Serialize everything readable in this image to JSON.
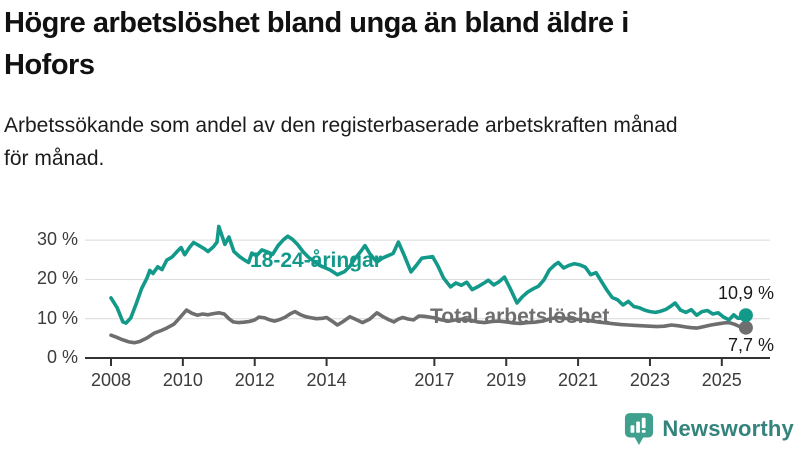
{
  "chart_data": {
    "type": "line",
    "title": "Högre arbetslöshet bland unga än bland äldre i Hofors",
    "subtitle": "Arbetssökande som andel av den registerbaserade arbetskraften månad för månad.",
    "xlabel": "",
    "ylabel": "",
    "xlim": [
      2008,
      2025.9
    ],
    "ylim": [
      0,
      34
    ],
    "grid": true,
    "legend_position": "inline-labels",
    "x_ticks": [
      2008,
      2010,
      2012,
      2014,
      2017,
      2019,
      2021,
      2023,
      2025
    ],
    "y_ticks": [
      {
        "value": 0,
        "label": "0 %"
      },
      {
        "value": 10,
        "label": "10 %"
      },
      {
        "value": 20,
        "label": "20 %"
      },
      {
        "value": 30,
        "label": "30 %"
      }
    ],
    "series": [
      {
        "name": "18-24-åringar",
        "color": "#13998a",
        "end_label": "10,9 %",
        "end_value": 10.9,
        "points": [
          [
            2008.0,
            15.3
          ],
          [
            2008.17,
            12.8
          ],
          [
            2008.33,
            9.2
          ],
          [
            2008.42,
            8.9
          ],
          [
            2008.55,
            10.2
          ],
          [
            2008.7,
            13.8
          ],
          [
            2008.85,
            17.6
          ],
          [
            2009.0,
            20.3
          ],
          [
            2009.08,
            22.3
          ],
          [
            2009.17,
            21.5
          ],
          [
            2009.3,
            23.2
          ],
          [
            2009.42,
            22.5
          ],
          [
            2009.55,
            24.9
          ],
          [
            2009.7,
            25.7
          ],
          [
            2009.85,
            27.2
          ],
          [
            2009.95,
            28.1
          ],
          [
            2010.05,
            26.3
          ],
          [
            2010.2,
            28.3
          ],
          [
            2010.3,
            29.4
          ],
          [
            2010.45,
            28.6
          ],
          [
            2010.6,
            27.8
          ],
          [
            2010.7,
            27.1
          ],
          [
            2010.85,
            28.3
          ],
          [
            2010.95,
            29.5
          ],
          [
            2011.0,
            33.5
          ],
          [
            2011.1,
            30.8
          ],
          [
            2011.17,
            28.9
          ],
          [
            2011.28,
            30.8
          ],
          [
            2011.42,
            27.1
          ],
          [
            2011.58,
            25.8
          ],
          [
            2011.72,
            24.9
          ],
          [
            2011.83,
            24.3
          ],
          [
            2011.92,
            26.7
          ],
          [
            2012.05,
            26.0
          ],
          [
            2012.2,
            27.5
          ],
          [
            2012.35,
            27.0
          ],
          [
            2012.5,
            26.4
          ],
          [
            2012.65,
            28.6
          ],
          [
            2012.8,
            30.1
          ],
          [
            2012.92,
            31.0
          ],
          [
            2013.05,
            30.2
          ],
          [
            2013.2,
            28.8
          ],
          [
            2013.35,
            27.0
          ],
          [
            2013.5,
            25.6
          ],
          [
            2013.65,
            24.6
          ],
          [
            2013.8,
            23.6
          ],
          [
            2013.95,
            23.0
          ],
          [
            2014.1,
            22.4
          ],
          [
            2014.3,
            21.2
          ],
          [
            2014.5,
            22.0
          ],
          [
            2014.65,
            23.4
          ],
          [
            2014.8,
            25.4
          ],
          [
            2014.95,
            27.1
          ],
          [
            2015.07,
            28.6
          ],
          [
            2015.2,
            26.6
          ],
          [
            2015.4,
            24.4
          ],
          [
            2015.55,
            25.4
          ],
          [
            2015.7,
            26.0
          ],
          [
            2015.85,
            26.6
          ],
          [
            2016.0,
            29.5
          ],
          [
            2016.15,
            26.4
          ],
          [
            2016.35,
            21.9
          ],
          [
            2016.5,
            23.6
          ],
          [
            2016.65,
            25.4
          ],
          [
            2016.8,
            25.6
          ],
          [
            2016.95,
            25.8
          ],
          [
            2017.1,
            23.4
          ],
          [
            2017.25,
            20.4
          ],
          [
            2017.45,
            18.1
          ],
          [
            2017.6,
            19.1
          ],
          [
            2017.75,
            18.5
          ],
          [
            2017.9,
            19.3
          ],
          [
            2018.05,
            17.4
          ],
          [
            2018.2,
            18.1
          ],
          [
            2018.35,
            18.9
          ],
          [
            2018.5,
            19.8
          ],
          [
            2018.65,
            18.6
          ],
          [
            2018.8,
            19.4
          ],
          [
            2018.95,
            20.6
          ],
          [
            2019.1,
            17.9
          ],
          [
            2019.3,
            14.0
          ],
          [
            2019.45,
            15.6
          ],
          [
            2019.6,
            16.8
          ],
          [
            2019.75,
            17.6
          ],
          [
            2019.9,
            18.3
          ],
          [
            2020.05,
            19.9
          ],
          [
            2020.2,
            22.4
          ],
          [
            2020.35,
            23.7
          ],
          [
            2020.45,
            24.3
          ],
          [
            2020.6,
            22.9
          ],
          [
            2020.75,
            23.6
          ],
          [
            2020.9,
            24.0
          ],
          [
            2021.05,
            23.7
          ],
          [
            2021.2,
            23.1
          ],
          [
            2021.35,
            21.2
          ],
          [
            2021.5,
            21.7
          ],
          [
            2021.65,
            19.5
          ],
          [
            2021.8,
            17.3
          ],
          [
            2021.95,
            15.4
          ],
          [
            2022.1,
            14.8
          ],
          [
            2022.25,
            13.5
          ],
          [
            2022.4,
            14.4
          ],
          [
            2022.55,
            13.1
          ],
          [
            2022.7,
            12.8
          ],
          [
            2022.85,
            12.2
          ],
          [
            2023.0,
            11.8
          ],
          [
            2023.15,
            11.6
          ],
          [
            2023.3,
            11.9
          ],
          [
            2023.45,
            12.4
          ],
          [
            2023.6,
            13.3
          ],
          [
            2023.7,
            14.0
          ],
          [
            2023.85,
            12.2
          ],
          [
            2024.0,
            11.6
          ],
          [
            2024.15,
            12.3
          ],
          [
            2024.3,
            10.9
          ],
          [
            2024.45,
            11.8
          ],
          [
            2024.6,
            12.1
          ],
          [
            2024.75,
            11.2
          ],
          [
            2024.9,
            11.5
          ],
          [
            2025.05,
            10.4
          ],
          [
            2025.2,
            9.7
          ],
          [
            2025.33,
            11.0
          ],
          [
            2025.45,
            10.1
          ],
          [
            2025.55,
            10.2
          ],
          [
            2025.67,
            10.9
          ]
        ]
      },
      {
        "name": "Total arbetslöshet",
        "color": "#6e6e6e",
        "end_label": "7,7 %",
        "end_value": 7.7,
        "points": [
          [
            2008.0,
            5.8
          ],
          [
            2008.15,
            5.3
          ],
          [
            2008.3,
            4.7
          ],
          [
            2008.5,
            4.1
          ],
          [
            2008.65,
            3.9
          ],
          [
            2008.8,
            4.2
          ],
          [
            2009.0,
            5.1
          ],
          [
            2009.2,
            6.3
          ],
          [
            2009.4,
            7.0
          ],
          [
            2009.55,
            7.6
          ],
          [
            2009.75,
            8.6
          ],
          [
            2009.9,
            10.1
          ],
          [
            2010.1,
            12.2
          ],
          [
            2010.25,
            11.4
          ],
          [
            2010.4,
            10.9
          ],
          [
            2010.55,
            11.2
          ],
          [
            2010.7,
            11.0
          ],
          [
            2010.85,
            11.3
          ],
          [
            2011.0,
            11.5
          ],
          [
            2011.15,
            11.2
          ],
          [
            2011.28,
            10.0
          ],
          [
            2011.4,
            9.2
          ],
          [
            2011.55,
            9.0
          ],
          [
            2011.7,
            9.1
          ],
          [
            2011.85,
            9.3
          ],
          [
            2012.0,
            9.7
          ],
          [
            2012.12,
            10.4
          ],
          [
            2012.28,
            10.2
          ],
          [
            2012.42,
            9.7
          ],
          [
            2012.55,
            9.4
          ],
          [
            2012.7,
            9.8
          ],
          [
            2012.85,
            10.4
          ],
          [
            2013.0,
            11.3
          ],
          [
            2013.12,
            11.8
          ],
          [
            2013.28,
            11.0
          ],
          [
            2013.42,
            10.5
          ],
          [
            2013.58,
            10.2
          ],
          [
            2013.72,
            10.0
          ],
          [
            2013.88,
            10.1
          ],
          [
            2014.0,
            10.3
          ],
          [
            2014.15,
            9.4
          ],
          [
            2014.3,
            8.4
          ],
          [
            2014.48,
            9.4
          ],
          [
            2014.65,
            10.5
          ],
          [
            2014.82,
            9.8
          ],
          [
            2015.0,
            9.0
          ],
          [
            2015.2,
            9.9
          ],
          [
            2015.4,
            11.5
          ],
          [
            2015.57,
            10.5
          ],
          [
            2015.72,
            9.8
          ],
          [
            2015.87,
            9.2
          ],
          [
            2016.0,
            9.9
          ],
          [
            2016.12,
            10.3
          ],
          [
            2016.28,
            9.9
          ],
          [
            2016.42,
            9.7
          ],
          [
            2016.57,
            10.7
          ],
          [
            2016.72,
            10.6
          ],
          [
            2016.87,
            10.4
          ],
          [
            2017.0,
            10.2
          ],
          [
            2017.2,
            9.7
          ],
          [
            2017.4,
            9.4
          ],
          [
            2017.6,
            9.7
          ],
          [
            2017.8,
            9.9
          ],
          [
            2018.0,
            9.6
          ],
          [
            2018.2,
            9.2
          ],
          [
            2018.4,
            9.0
          ],
          [
            2018.6,
            9.3
          ],
          [
            2018.8,
            9.4
          ],
          [
            2019.0,
            9.2
          ],
          [
            2019.2,
            8.9
          ],
          [
            2019.4,
            8.8
          ],
          [
            2019.6,
            9.0
          ],
          [
            2019.8,
            9.1
          ],
          [
            2020.0,
            9.4
          ],
          [
            2020.2,
            9.9
          ],
          [
            2020.4,
            10.3
          ],
          [
            2020.6,
            10.1
          ],
          [
            2020.8,
            10.0
          ],
          [
            2021.0,
            9.8
          ],
          [
            2021.2,
            9.6
          ],
          [
            2021.4,
            9.4
          ],
          [
            2021.6,
            9.1
          ],
          [
            2021.8,
            8.9
          ],
          [
            2022.0,
            8.7
          ],
          [
            2022.2,
            8.5
          ],
          [
            2022.4,
            8.4
          ],
          [
            2022.6,
            8.3
          ],
          [
            2022.8,
            8.2
          ],
          [
            2023.0,
            8.1
          ],
          [
            2023.2,
            8.0
          ],
          [
            2023.4,
            8.1
          ],
          [
            2023.6,
            8.4
          ],
          [
            2023.8,
            8.2
          ],
          [
            2024.0,
            7.9
          ],
          [
            2024.15,
            7.7
          ],
          [
            2024.3,
            7.6
          ],
          [
            2024.5,
            8.0
          ],
          [
            2024.7,
            8.4
          ],
          [
            2024.9,
            8.7
          ],
          [
            2025.05,
            8.9
          ],
          [
            2025.2,
            9.0
          ],
          [
            2025.35,
            8.6
          ],
          [
            2025.5,
            8.0
          ],
          [
            2025.67,
            7.7
          ]
        ]
      }
    ],
    "axis_color": "#333333",
    "gridline_color": "#d9d9d9",
    "tick_label_color": "#3c3c3c"
  },
  "footer": {
    "brand": "Newsworthy",
    "icon": "bar-chart-pin-icon",
    "icon_color": "#3fa08e",
    "brand_color": "#35837d"
  }
}
